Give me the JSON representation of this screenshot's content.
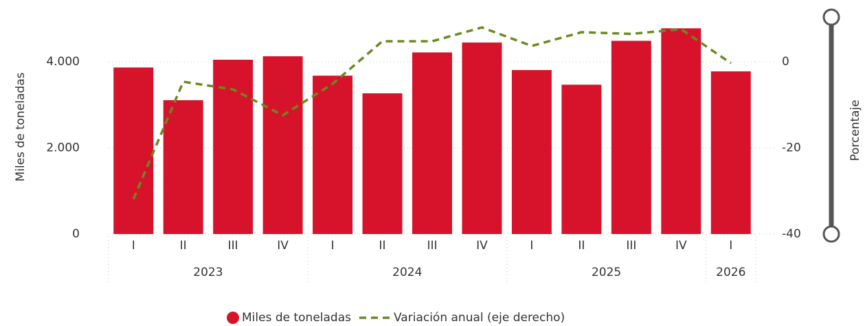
{
  "chart_data": {
    "type": "bar-line",
    "y_label": "Miles de toneladas",
    "y2_label": "Porcentaje",
    "categories": [
      [
        "2023",
        "I"
      ],
      [
        "2023",
        "II"
      ],
      [
        "2023",
        "III"
      ],
      [
        "2023",
        "IV"
      ],
      [
        "2024",
        "I"
      ],
      [
        "2024",
        "II"
      ],
      [
        "2024",
        "III"
      ],
      [
        "2024",
        "IV"
      ],
      [
        "2025",
        "I"
      ],
      [
        "2025",
        "II"
      ],
      [
        "2025",
        "III"
      ],
      [
        "2025",
        "IV"
      ],
      [
        "2026",
        "I"
      ]
    ],
    "series": [
      {
        "name": "Miles de toneladas",
        "type": "bar",
        "color": "#d7132c",
        "values": [
          3870,
          3110,
          4050,
          4130,
          3680,
          3270,
          4220,
          4450,
          3810,
          3470,
          4490,
          4780,
          3780
        ]
      },
      {
        "name": "Variación anual (eje derecho)",
        "type": "line",
        "axis": "y2",
        "color": "#6a8a1f",
        "dashed": true,
        "values": [
          -31.9,
          -4.6,
          -6.4,
          -12.4,
          -5.1,
          4.8,
          4.8,
          8.0,
          3.7,
          6.9,
          6.5,
          7.6,
          -0.3
        ]
      }
    ],
    "ylim": [
      0,
      4800
    ],
    "yticks": [
      0,
      {
        "value": 2000,
        "label": "2.000"
      },
      {
        "value": 4000,
        "label": "4.000"
      }
    ],
    "y2lim": [
      -40,
      8
    ],
    "y2ticks": [
      -40,
      -20,
      0
    ],
    "grid": true,
    "legend": "bottom"
  }
}
